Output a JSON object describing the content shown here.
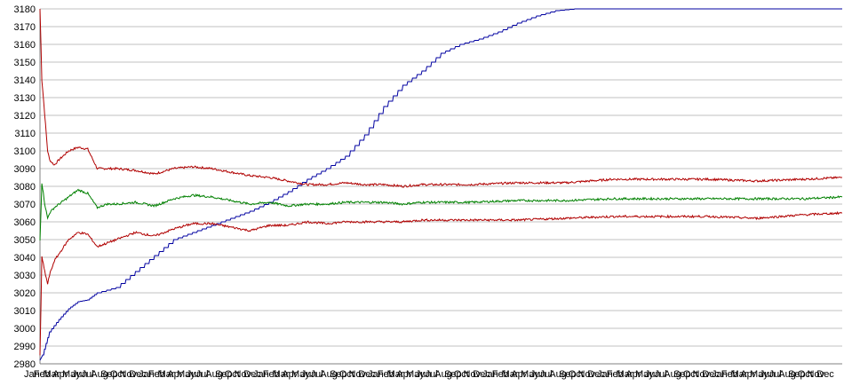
{
  "chart_data": {
    "type": "line",
    "title": "",
    "xlabel": "",
    "ylabel": "",
    "ylim": [
      2980,
      3180
    ],
    "y_ticks": [
      2980,
      2990,
      3000,
      3010,
      3020,
      3030,
      3040,
      3050,
      3060,
      3070,
      3080,
      3090,
      3100,
      3110,
      3120,
      3130,
      3140,
      3150,
      3160,
      3170,
      3180
    ],
    "grid": "horizontal",
    "legend": "none",
    "x_month_cycle": [
      "Jan",
      "Feb",
      "Mar",
      "Apr",
      "May",
      "Jun",
      "Jul",
      "Aug",
      "Sep",
      "Oct",
      "Nov",
      "Dec"
    ],
    "x_years": 7,
    "colors": {
      "upper": "#b00000",
      "middle": "#008000",
      "lower": "#b00000",
      "cumulative": "#0000a0",
      "grid": "#c0c0c0",
      "axis": "#808080"
    },
    "series": [
      {
        "key": "cumulative",
        "x": [
          0,
          0.3,
          1,
          2,
          3,
          4,
          5,
          6,
          8,
          10,
          12,
          14,
          16,
          18,
          20,
          22,
          24,
          26,
          28,
          30,
          32,
          34,
          36,
          38,
          40,
          42,
          44,
          46,
          48,
          50,
          52,
          54,
          56,
          58,
          60,
          62,
          64,
          66,
          68,
          70,
          72,
          74,
          76,
          78,
          80,
          82,
          84
        ],
        "values": [
          2982,
          2985,
          2998,
          3005,
          3011,
          3015,
          3016,
          3020,
          3023,
          3032,
          3041,
          3050,
          3054,
          3058,
          3062,
          3066,
          3071,
          3077,
          3084,
          3090,
          3097,
          3109,
          3125,
          3137,
          3145,
          3155,
          3160,
          3163,
          3167,
          3172,
          3176,
          3179,
          3180,
          3180,
          3180,
          3180,
          3180,
          3180,
          3180,
          3180,
          3180,
          3180,
          3180,
          3180,
          3180,
          3180,
          3180
        ]
      },
      {
        "key": "upper",
        "x": [
          0,
          0.2,
          0.5,
          0.8,
          1,
          1.5,
          2,
          3,
          4,
          5,
          6,
          7,
          8,
          10,
          12,
          14,
          16,
          18,
          20,
          22,
          24,
          26,
          28,
          30,
          32,
          34,
          36,
          38,
          40,
          45,
          50,
          55,
          60,
          65,
          70,
          75,
          80,
          84
        ],
        "values": [
          3180,
          3140,
          3120,
          3100,
          3095,
          3092,
          3095,
          3100,
          3102,
          3101,
          3090,
          3090,
          3090,
          3089,
          3087,
          3090,
          3091,
          3090,
          3088,
          3086,
          3085,
          3083,
          3081,
          3081,
          3082,
          3081,
          3081,
          3080,
          3081,
          3081,
          3082,
          3082,
          3084,
          3084,
          3084,
          3083,
          3084,
          3085
        ]
      },
      {
        "key": "middle",
        "x": [
          0,
          0.2,
          0.5,
          0.8,
          1,
          1.5,
          2,
          3,
          4,
          5,
          6,
          7,
          8,
          10,
          12,
          14,
          16,
          18,
          20,
          22,
          24,
          26,
          28,
          30,
          32,
          34,
          36,
          38,
          40,
          45,
          50,
          55,
          60,
          65,
          70,
          75,
          80,
          84
        ],
        "values": [
          3050,
          3082,
          3070,
          3062,
          3065,
          3068,
          3070,
          3074,
          3078,
          3076,
          3068,
          3070,
          3070,
          3071,
          3069,
          3073,
          3075,
          3074,
          3072,
          3070,
          3071,
          3069,
          3070,
          3070,
          3071,
          3071,
          3071,
          3070,
          3071,
          3071,
          3072,
          3072,
          3073,
          3073,
          3073,
          3073,
          3073,
          3074
        ]
      },
      {
        "key": "lower",
        "x": [
          0,
          0.2,
          0.5,
          0.8,
          1,
          1.5,
          2,
          3,
          4,
          5,
          6,
          7,
          8,
          10,
          12,
          14,
          16,
          18,
          20,
          22,
          24,
          26,
          28,
          30,
          32,
          34,
          36,
          38,
          40,
          45,
          50,
          55,
          60,
          65,
          70,
          75,
          80,
          84
        ],
        "values": [
          2985,
          3040,
          3032,
          3025,
          3030,
          3038,
          3042,
          3050,
          3054,
          3053,
          3046,
          3048,
          3050,
          3054,
          3052,
          3056,
          3059,
          3059,
          3057,
          3055,
          3058,
          3058,
          3060,
          3059,
          3060,
          3060,
          3060,
          3060,
          3061,
          3061,
          3061,
          3062,
          3063,
          3063,
          3063,
          3062,
          3064,
          3065
        ]
      }
    ]
  }
}
